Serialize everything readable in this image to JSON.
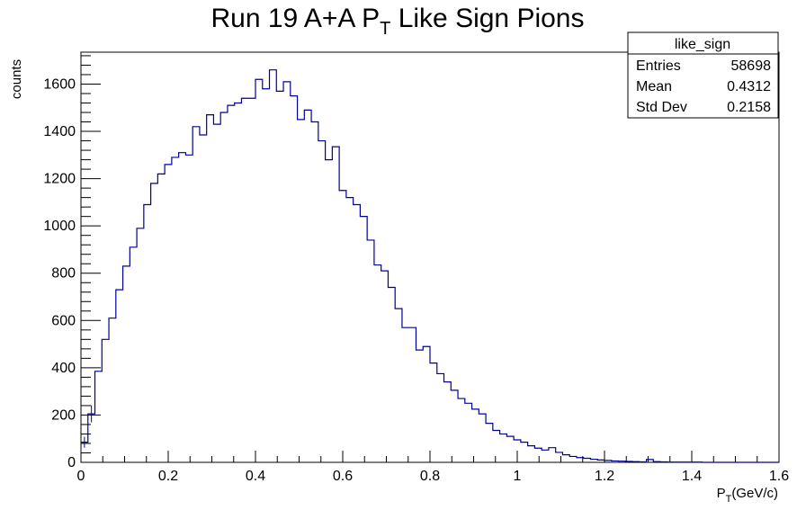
{
  "chart_data": {
    "type": "histogram",
    "title": "Run 19 A+A P",
    "title_subscript": "T",
    "title_suffix": " Like Sign Pions",
    "xlabel": "P",
    "xlabel_subscript": "T",
    "xlabel_suffix": "(GeV/c)",
    "ylabel": "counts",
    "xlim": [
      0,
      1.6
    ],
    "ylim": [
      0,
      1735
    ],
    "bin_width": 0.016,
    "x_ticks": [
      0,
      0.2,
      0.4,
      0.6,
      0.8,
      1,
      1.2,
      1.4,
      1.6
    ],
    "x_tick_labels": [
      "0",
      "0.2",
      "0.4",
      "0.6",
      "0.8",
      "1",
      "1.2",
      "1.4",
      "1.6"
    ],
    "y_ticks": [
      0,
      200,
      400,
      600,
      800,
      1000,
      1200,
      1400,
      1600
    ],
    "y_tick_labels": [
      "0",
      "200",
      "400",
      "600",
      "800",
      "1000",
      "1200",
      "1400",
      "1600"
    ],
    "series": [
      {
        "color": "#000099",
        "values": [
          85,
          205,
          385,
          520,
          610,
          730,
          830,
          910,
          990,
          1090,
          1180,
          1220,
          1260,
          1290,
          1310,
          1300,
          1420,
          1385,
          1470,
          1430,
          1480,
          1510,
          1520,
          1540,
          1540,
          1620,
          1580,
          1660,
          1570,
          1610,
          1550,
          1450,
          1490,
          1440,
          1360,
          1280,
          1335,
          1150,
          1120,
          1090,
          1040,
          940,
          835,
          810,
          740,
          650,
          570,
          570,
          475,
          490,
          420,
          375,
          340,
          305,
          270,
          250,
          225,
          205,
          165,
          135,
          120,
          110,
          95,
          85,
          70,
          60,
          52,
          62,
          42,
          32,
          25,
          20,
          17,
          13,
          10,
          8,
          6,
          5,
          4,
          3,
          2,
          12,
          3,
          2,
          1,
          1,
          1,
          1,
          1,
          0,
          0,
          0,
          0,
          0,
          0,
          0,
          0,
          0,
          0,
          0
        ]
      }
    ],
    "stats_box": {
      "title": "like_sign",
      "rows": [
        {
          "label": "Entries",
          "value": "58698"
        },
        {
          "label": "Mean",
          "value": "0.4312"
        },
        {
          "label": "Std Dev",
          "value": "0.2158"
        }
      ]
    },
    "line_color": "#000099",
    "grid": false
  }
}
